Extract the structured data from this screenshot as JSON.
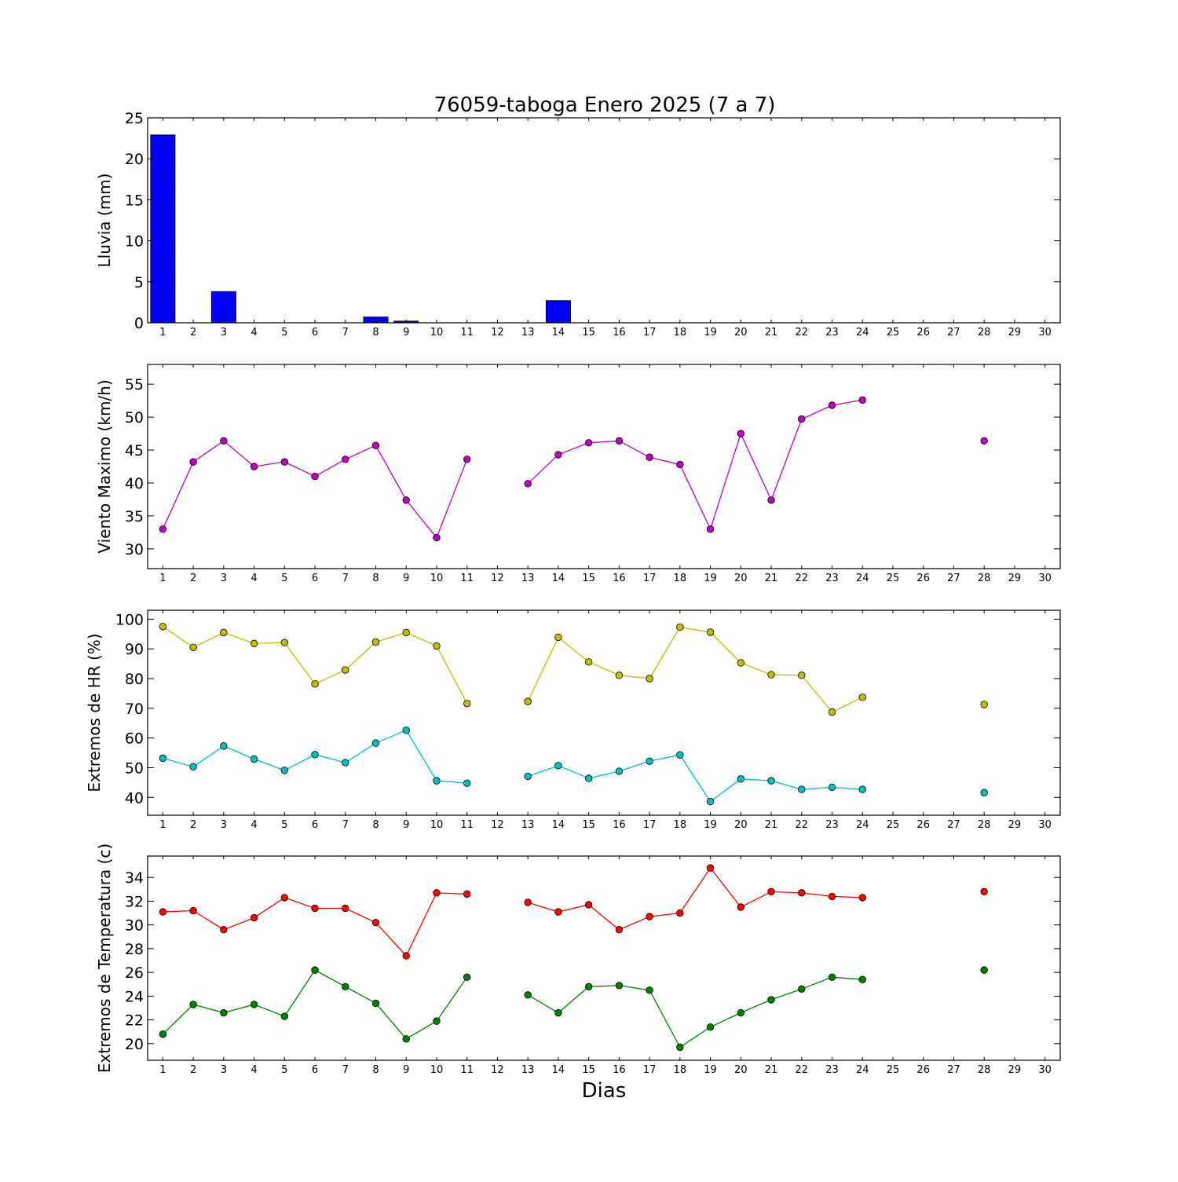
{
  "chart_data": [
    {
      "type": "bar",
      "title": "76059-taboga Enero 2025  (7 a 7)",
      "xlabel": "",
      "ylabel": "Lluvia (mm)",
      "x": [
        1,
        2,
        3,
        4,
        5,
        6,
        7,
        8,
        9,
        10,
        11,
        12,
        13,
        14,
        15,
        16,
        17,
        18,
        19,
        20,
        21,
        22,
        23,
        24,
        25,
        26,
        27,
        28,
        29,
        30
      ],
      "xlim": [
        0.5,
        30.5
      ],
      "ylim": [
        0,
        25
      ],
      "yticks": [
        0,
        5,
        10,
        15,
        20,
        25
      ],
      "color": "#0000ff",
      "values": [
        22.9,
        0,
        3.8,
        0,
        0,
        0,
        0,
        0.7,
        0.2,
        0,
        0,
        0,
        0,
        2.7,
        0,
        0,
        0,
        0,
        0,
        0,
        0,
        0,
        0,
        0,
        null,
        null,
        null,
        null,
        null,
        null
      ]
    },
    {
      "type": "line",
      "title": "",
      "xlabel": "",
      "ylabel": "Viento Maximo (km/h)",
      "x": [
        1,
        2,
        3,
        4,
        5,
        6,
        7,
        8,
        9,
        10,
        11,
        12,
        13,
        14,
        15,
        16,
        17,
        18,
        19,
        20,
        21,
        22,
        23,
        24,
        25,
        26,
        27,
        28,
        29,
        30
      ],
      "xlim": [
        0.5,
        30.5
      ],
      "ylim": [
        27,
        58
      ],
      "yticks": [
        30,
        35,
        40,
        45,
        50,
        55
      ],
      "series": [
        {
          "color": "#bf00bf",
          "values": [
            33,
            43.2,
            46.4,
            42.5,
            43.2,
            41,
            43.6,
            45.7,
            37.4,
            31.7,
            43.6,
            null,
            39.9,
            44.3,
            46.1,
            46.4,
            43.9,
            42.8,
            33,
            47.5,
            37.4,
            49.7,
            51.8,
            52.6,
            null,
            null,
            null,
            46.4,
            null,
            null
          ]
        }
      ]
    },
    {
      "type": "line",
      "title": "",
      "xlabel": "",
      "ylabel": "Extremos de HR (%)",
      "x": [
        1,
        2,
        3,
        4,
        5,
        6,
        7,
        8,
        9,
        10,
        11,
        12,
        13,
        14,
        15,
        16,
        17,
        18,
        19,
        20,
        21,
        22,
        23,
        24,
        25,
        26,
        27,
        28,
        29,
        30
      ],
      "xlim": [
        0.5,
        30.5
      ],
      "ylim": [
        34,
        103
      ],
      "yticks": [
        40,
        50,
        60,
        70,
        80,
        90,
        100
      ],
      "series": [
        {
          "color": "#bfbf00",
          "values": [
            97.5,
            90.5,
            95.5,
            91.8,
            92.1,
            78.2,
            82.9,
            92.3,
            95.5,
            91,
            71.6,
            null,
            72.3,
            93.9,
            85.6,
            81.1,
            80,
            97.3,
            95.6,
            85.3,
            81.3,
            81.1,
            68.7,
            73.7,
            null,
            null,
            null,
            71.3,
            null,
            null
          ]
        },
        {
          "color": "#00bfbf",
          "values": [
            53.2,
            50.3,
            57.3,
            52.9,
            49.1,
            54.4,
            51.7,
            58.3,
            62.6,
            45.6,
            44.8,
            null,
            47.1,
            50.7,
            46.4,
            48.8,
            52.2,
            54.3,
            38.6,
            46.2,
            45.6,
            42.7,
            43.4,
            42.7,
            null,
            null,
            null,
            41.6,
            null,
            null
          ]
        }
      ]
    },
    {
      "type": "line",
      "title": "",
      "xlabel": "Dias",
      "ylabel": "Extremos de Temperatura (c)",
      "x": [
        1,
        2,
        3,
        4,
        5,
        6,
        7,
        8,
        9,
        10,
        11,
        12,
        13,
        14,
        15,
        16,
        17,
        18,
        19,
        20,
        21,
        22,
        23,
        24,
        25,
        26,
        27,
        28,
        29,
        30
      ],
      "xlim": [
        0.5,
        30.5
      ],
      "ylim": [
        18.6,
        35.8
      ],
      "yticks": [
        20,
        22,
        24,
        26,
        28,
        30,
        32,
        34
      ],
      "series": [
        {
          "color": "#ff0000",
          "values": [
            31.1,
            31.2,
            29.6,
            30.6,
            32.3,
            31.4,
            31.4,
            30.2,
            27.4,
            32.7,
            32.6,
            null,
            31.9,
            31.1,
            31.7,
            29.6,
            30.7,
            31,
            34.8,
            31.5,
            32.8,
            32.7,
            32.4,
            32.3,
            null,
            null,
            null,
            32.8,
            null,
            null
          ]
        },
        {
          "color": "#008000",
          "values": [
            20.8,
            23.3,
            22.6,
            23.3,
            22.3,
            26.2,
            24.8,
            23.4,
            20.4,
            21.9,
            25.6,
            null,
            24.1,
            22.6,
            24.8,
            24.9,
            24.5,
            19.7,
            21.4,
            22.6,
            23.7,
            24.6,
            25.6,
            25.4,
            null,
            null,
            null,
            26.2,
            null,
            null
          ]
        }
      ]
    }
  ]
}
